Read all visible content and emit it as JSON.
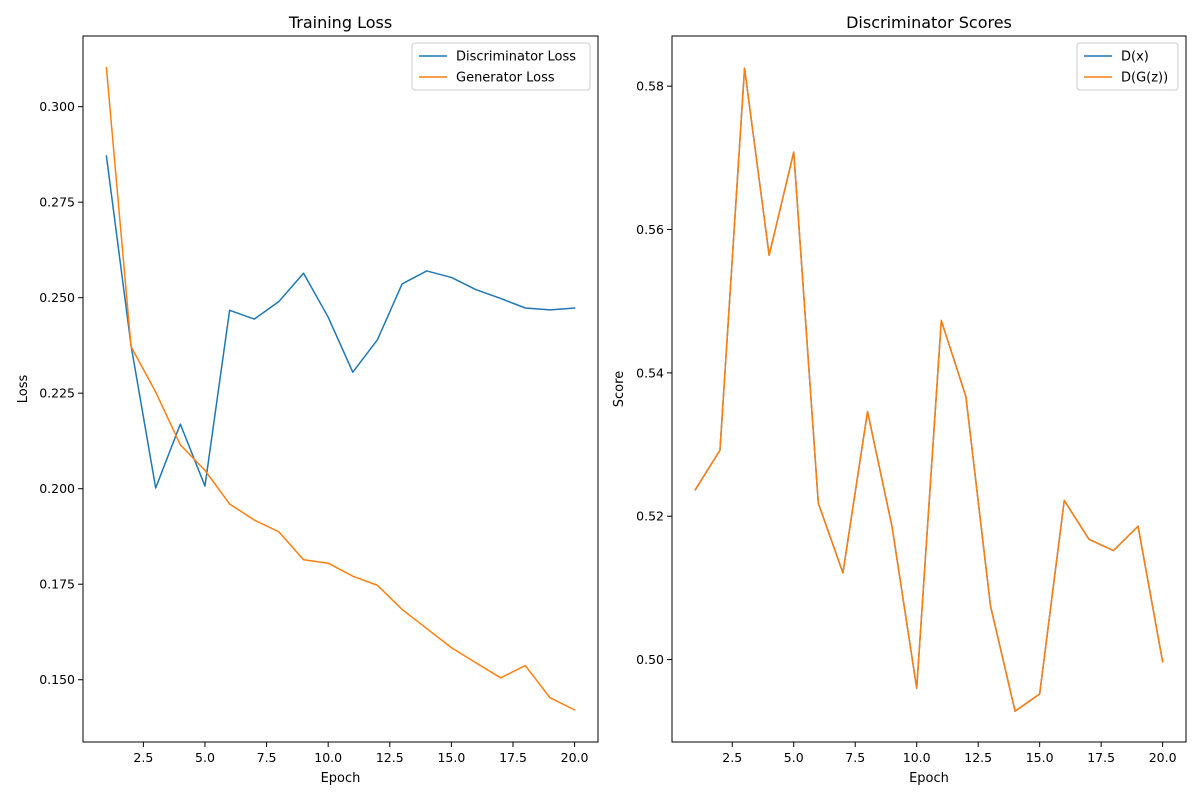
{
  "figure": {
    "colors": {
      "blue": "#1f77b4",
      "orange": "#ff7f0e"
    }
  },
  "chart_data": [
    {
      "type": "line",
      "title": "Training Loss",
      "xlabel": "Epoch",
      "ylabel": "Loss",
      "xlim": [
        0.05,
        20.95
      ],
      "ylim": [
        0.1337,
        0.3185
      ],
      "xticks": [
        2.5,
        5.0,
        7.5,
        10.0,
        12.5,
        15.0,
        17.5,
        20.0
      ],
      "xtick_labels": [
        "2.5",
        "5.0",
        "7.5",
        "10.0",
        "12.5",
        "15.0",
        "17.5",
        "20.0"
      ],
      "yticks": [
        0.15,
        0.175,
        0.2,
        0.225,
        0.25,
        0.275,
        0.3
      ],
      "ytick_labels": [
        "0.150",
        "0.175",
        "0.200",
        "0.225",
        "0.250",
        "0.275",
        "0.300"
      ],
      "grid": false,
      "legend_position": "top-right",
      "x": [
        1,
        2,
        3,
        4,
        5,
        6,
        7,
        8,
        9,
        10,
        11,
        12,
        13,
        14,
        15,
        16,
        17,
        18,
        19,
        20
      ],
      "series": [
        {
          "name": "Discriminator Loss",
          "color": "#1f77b4",
          "values": [
            0.2871,
            0.2375,
            0.2002,
            0.2169,
            0.2007,
            0.2467,
            0.2444,
            0.249,
            0.2564,
            0.2449,
            0.2305,
            0.239,
            0.2536,
            0.257,
            0.2553,
            0.2521,
            0.2498,
            0.2473,
            0.2468,
            0.2473
          ]
        },
        {
          "name": "Generator Loss",
          "color": "#ff7f0e",
          "values": [
            0.3102,
            0.2372,
            0.2253,
            0.2115,
            0.2048,
            0.196,
            0.1918,
            0.1887,
            0.1814,
            0.1805,
            0.1771,
            0.1747,
            0.1684,
            0.1634,
            0.1584,
            0.1544,
            0.1505,
            0.1537,
            0.1453,
            0.1421
          ]
        }
      ]
    },
    {
      "type": "line",
      "title": "Discriminator Scores",
      "xlabel": "Epoch",
      "ylabel": "Score",
      "xlim": [
        0.05,
        20.95
      ],
      "ylim": [
        0.4885,
        0.587
      ],
      "xticks": [
        2.5,
        5.0,
        7.5,
        10.0,
        12.5,
        15.0,
        17.5,
        20.0
      ],
      "xtick_labels": [
        "2.5",
        "5.0",
        "7.5",
        "10.0",
        "12.5",
        "15.0",
        "17.5",
        "20.0"
      ],
      "yticks": [
        0.5,
        0.52,
        0.54,
        0.56,
        0.58
      ],
      "ytick_labels": [
        "0.50",
        "0.52",
        "0.54",
        "0.56",
        "0.58"
      ],
      "grid": false,
      "legend_position": "top-right",
      "x": [
        1,
        2,
        3,
        4,
        5,
        6,
        7,
        8,
        9,
        10,
        11,
        12,
        13,
        14,
        15,
        16,
        17,
        18,
        19,
        20
      ],
      "series": [
        {
          "name": "D(x)",
          "color": "#1f77b4",
          "values": [
            0.5237,
            0.5292,
            0.5825,
            0.5564,
            0.5708,
            0.5218,
            0.5121,
            0.5346,
            0.5185,
            0.496,
            0.5473,
            0.5367,
            0.5075,
            0.4928,
            0.4952,
            0.5222,
            0.5168,
            0.5152,
            0.5186,
            0.4997
          ]
        },
        {
          "name": "D(G(z))",
          "color": "#ff7f0e",
          "values": [
            0.5237,
            0.5292,
            0.5825,
            0.5564,
            0.5708,
            0.5218,
            0.5121,
            0.5346,
            0.5185,
            0.496,
            0.5473,
            0.5367,
            0.5075,
            0.4928,
            0.4952,
            0.5222,
            0.5168,
            0.5152,
            0.5186,
            0.4997
          ]
        }
      ]
    }
  ]
}
